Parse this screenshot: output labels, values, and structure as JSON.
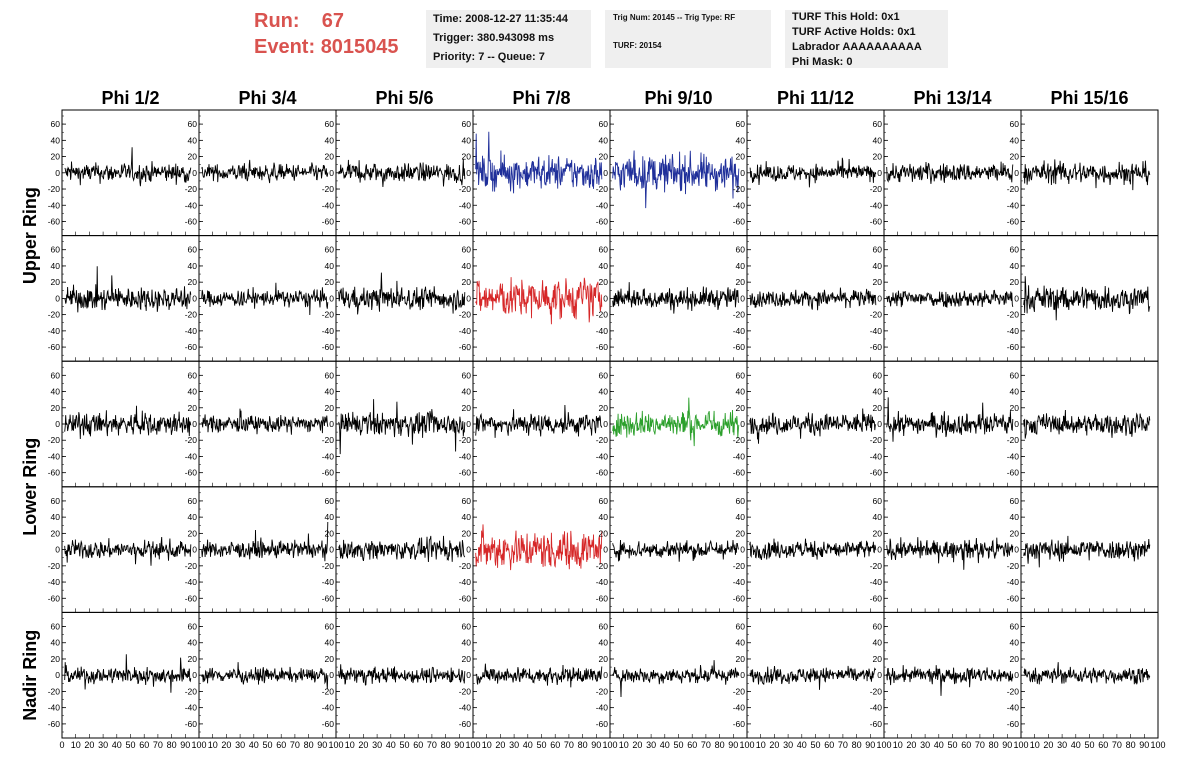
{
  "header": {
    "run_label": "Run:",
    "run_value": "67",
    "event_label": "Event:",
    "event_value": "8015045"
  },
  "info_time": {
    "time": "Time: 2008-12-27 11:35:44",
    "trigger": "Trigger: 380.943098 ms",
    "priority": "Priority: 7 -- Queue: 7"
  },
  "info_trig": {
    "trig": "Trig Num: 20145 -- Trig Type: RF",
    "turf": "TURF: 20154"
  },
  "info_turf": {
    "hold": "TURF This Hold: 0x1",
    "active": "TURF Active Holds: 0x1",
    "labrador": "Labrador AAAAAAAAAA",
    "phimask": "Phi Mask: 0"
  },
  "chart_data": {
    "type": "line",
    "columns": [
      "Phi 1/2",
      "Phi 3/4",
      "Phi 5/6",
      "Phi 7/8",
      "Phi 9/10",
      "Phi 11/12",
      "Phi 13/14",
      "Phi 15/16"
    ],
    "ring_labels": [
      "Upper Ring",
      "Lower Ring",
      "Nadir Ring"
    ],
    "panel_rows": 5,
    "ylim": [
      -70,
      70
    ],
    "yticks": [
      -60,
      -40,
      -20,
      0,
      20,
      40,
      60
    ],
    "xlim": [
      0,
      100
    ],
    "xticks": [
      0,
      10,
      20,
      30,
      40,
      50,
      60,
      70,
      80,
      90,
      100
    ],
    "default_color": "#000000",
    "colored_panels": [
      {
        "row": 0,
        "col": 3,
        "color": "#1f2f9a"
      },
      {
        "row": 0,
        "col": 4,
        "color": "#1f2f9a"
      },
      {
        "row": 1,
        "col": 3,
        "color": "#d62728"
      },
      {
        "row": 2,
        "col": 4,
        "color": "#2ca02c"
      },
      {
        "row": 3,
        "col": 3,
        "color": "#d62728"
      }
    ],
    "amplitudes": [
      [
        15,
        13,
        15,
        26,
        28,
        13,
        15,
        17
      ],
      [
        18,
        13,
        18,
        30,
        16,
        13,
        14,
        20
      ],
      [
        18,
        13,
        18,
        17,
        20,
        16,
        16,
        16
      ],
      [
        14,
        13,
        15,
        30,
        14,
        14,
        14,
        16
      ],
      [
        13,
        11,
        12,
        13,
        12,
        12,
        12,
        12
      ]
    ]
  }
}
